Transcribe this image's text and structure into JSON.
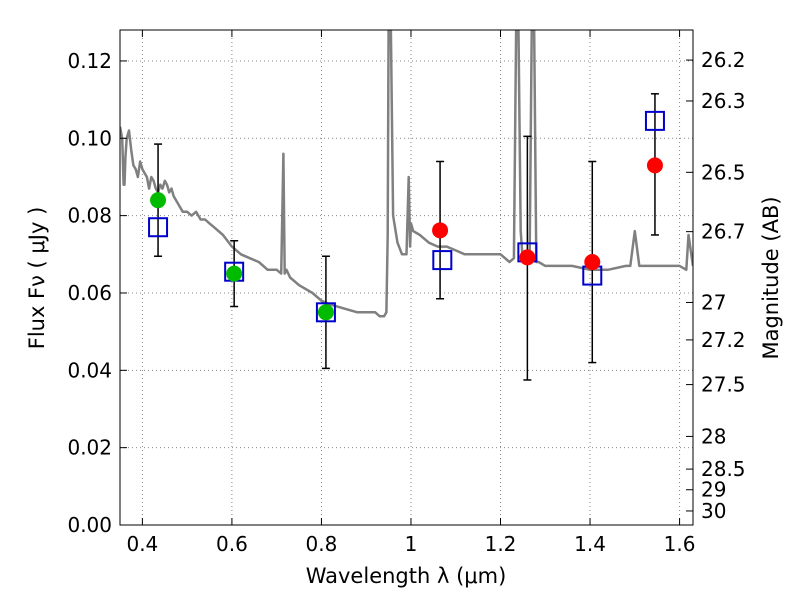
{
  "chart_data": {
    "type": "scatter",
    "xlabel": "Wavelength  λ (μm)",
    "ylabel": "Flux  Fν  ( μJy )",
    "ylabel_right": "Magnitude (AB)",
    "xlim": [
      0.35,
      1.63
    ],
    "ylim": [
      0.0,
      0.128
    ],
    "grid": true,
    "x_ticks": [
      {
        "value": 0.4,
        "label": "0.4"
      },
      {
        "value": 0.6,
        "label": "0.6"
      },
      {
        "value": 0.8,
        "label": "0.8"
      },
      {
        "value": 1.0,
        "label": "1"
      },
      {
        "value": 1.2,
        "label": "1.2"
      },
      {
        "value": 1.4,
        "label": "1.4"
      },
      {
        "value": 1.6,
        "label": "1.6"
      }
    ],
    "y_ticks": [
      {
        "value": 0.0,
        "label": "0.00"
      },
      {
        "value": 0.02,
        "label": "0.02"
      },
      {
        "value": 0.04,
        "label": "0.04"
      },
      {
        "value": 0.06,
        "label": "0.06"
      },
      {
        "value": 0.08,
        "label": "0.08"
      },
      {
        "value": 0.1,
        "label": "0.10"
      },
      {
        "value": 0.12,
        "label": "0.12"
      }
    ],
    "y_right_ticks": [
      {
        "value": 26.2,
        "label": "26.2"
      },
      {
        "value": 26.3,
        "label": "26.3"
      },
      {
        "value": 26.5,
        "label": "26.5"
      },
      {
        "value": 26.7,
        "label": "26.7"
      },
      {
        "value": 27.0,
        "label": "27"
      },
      {
        "value": 27.2,
        "label": "27.2"
      },
      {
        "value": 27.5,
        "label": "27.5"
      },
      {
        "value": 28.0,
        "label": "28"
      },
      {
        "value": 28.5,
        "label": "28.5"
      },
      {
        "value": 29.0,
        "label": "29"
      },
      {
        "value": 30.0,
        "label": "30"
      }
    ],
    "colors": {
      "sed_line": "#808080",
      "model_points": "#0000cc",
      "optical_points": "#00bb00",
      "nir_points": "#ff0000",
      "errorbars": "#000000",
      "grid": "#888888"
    },
    "series": [
      {
        "marker": "line",
        "x": [
          0.35,
          0.355,
          0.358,
          0.36,
          0.362,
          0.365,
          0.37,
          0.375,
          0.38,
          0.385,
          0.39,
          0.395,
          0.4,
          0.405,
          0.41,
          0.415,
          0.42,
          0.425,
          0.43,
          0.435,
          0.44,
          0.445,
          0.45,
          0.455,
          0.46,
          0.465,
          0.47,
          0.48,
          0.49,
          0.5,
          0.51,
          0.52,
          0.53,
          0.54,
          0.55,
          0.56,
          0.58,
          0.6,
          0.62,
          0.64,
          0.66,
          0.68,
          0.7,
          0.71,
          0.715,
          0.718,
          0.722,
          0.73,
          0.75,
          0.78,
          0.8,
          0.82,
          0.85,
          0.88,
          0.9,
          0.92,
          0.93,
          0.94,
          0.945,
          0.948,
          0.95,
          0.955,
          0.96,
          0.97,
          0.98,
          0.99,
          0.995,
          0.998,
          1.0,
          1.005,
          1.02,
          1.04,
          1.06,
          1.08,
          1.1,
          1.12,
          1.15,
          1.18,
          1.2,
          1.22,
          1.23,
          1.235,
          1.24,
          1.245,
          1.25,
          1.255,
          1.26,
          1.265,
          1.27,
          1.275,
          1.28,
          1.285,
          1.3,
          1.33,
          1.36,
          1.4,
          1.44,
          1.48,
          1.49,
          1.5,
          1.51,
          1.52,
          1.55,
          1.58,
          1.6,
          1.615,
          1.62,
          1.63
        ],
        "y": [
          0.103,
          0.1,
          0.088,
          0.088,
          0.095,
          0.1,
          0.102,
          0.097,
          0.093,
          0.092,
          0.09,
          0.094,
          0.092,
          0.091,
          0.09,
          0.087,
          0.09,
          0.089,
          0.087,
          0.086,
          0.088,
          0.087,
          0.089,
          0.088,
          0.086,
          0.087,
          0.085,
          0.083,
          0.081,
          0.081,
          0.08,
          0.081,
          0.079,
          0.079,
          0.078,
          0.077,
          0.075,
          0.072,
          0.07,
          0.069,
          0.068,
          0.066,
          0.066,
          0.065,
          0.096,
          0.065,
          0.066,
          0.064,
          0.062,
          0.06,
          0.058,
          0.057,
          0.056,
          0.055,
          0.055,
          0.055,
          0.054,
          0.054,
          0.055,
          0.075,
          0.13,
          0.13,
          0.08,
          0.073,
          0.07,
          0.07,
          0.09,
          0.072,
          0.078,
          0.076,
          0.075,
          0.073,
          0.072,
          0.072,
          0.071,
          0.07,
          0.07,
          0.07,
          0.07,
          0.068,
          0.069,
          0.13,
          0.13,
          0.076,
          0.068,
          0.068,
          0.07,
          0.068,
          0.13,
          0.13,
          0.068,
          0.068,
          0.067,
          0.067,
          0.067,
          0.066,
          0.066,
          0.067,
          0.067,
          0.076,
          0.067,
          0.067,
          0.067,
          0.067,
          0.067,
          0.066,
          0.075,
          0.067
        ]
      },
      {
        "marker": "open-square",
        "x": [
          0.435,
          0.605,
          0.81,
          1.07,
          1.26,
          1.405,
          1.545
        ],
        "y": [
          0.077,
          0.0655,
          0.055,
          0.0685,
          0.0705,
          0.0645,
          0.1045
        ]
      },
      {
        "marker": "filled-circle-green",
        "x": [
          0.435,
          0.605,
          0.81
        ],
        "y": [
          0.084,
          0.065,
          0.055
        ],
        "err_low": [
          0.0695,
          0.0565,
          0.0405
        ],
        "err_high": [
          0.0985,
          0.0735,
          0.0695
        ]
      },
      {
        "marker": "filled-circle-red",
        "x": [
          1.065,
          1.26,
          1.405,
          1.545
        ],
        "y": [
          0.0762,
          0.0692,
          0.068,
          0.093
        ],
        "err_low": [
          0.0585,
          0.0375,
          0.042,
          0.075
        ],
        "err_high": [
          0.094,
          0.1005,
          0.094,
          0.1115
        ]
      }
    ]
  }
}
